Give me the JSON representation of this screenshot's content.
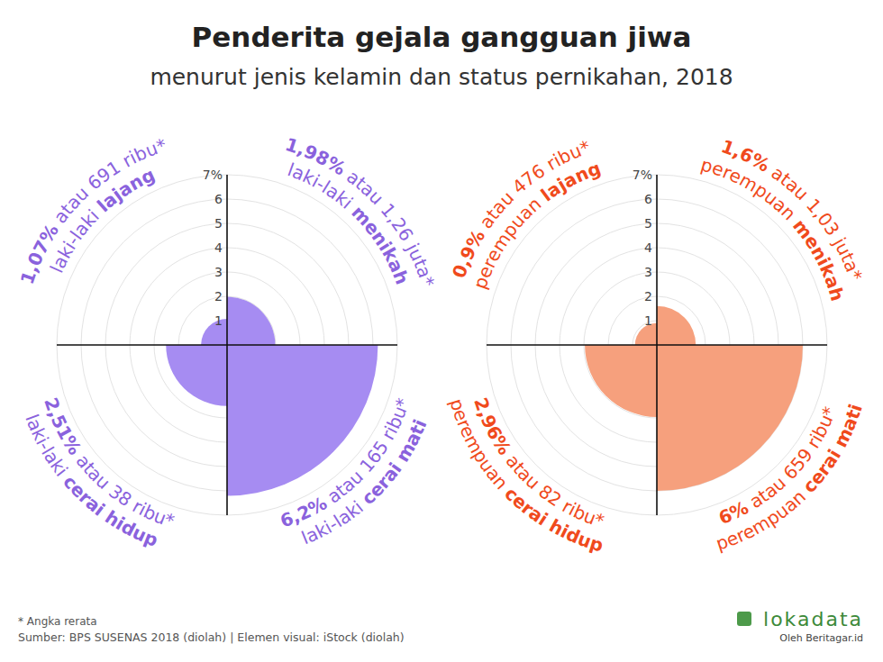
{
  "title": "Penderita gejala gangguan jiwa",
  "subtitle": "menurut jenis kelamin dan status pernikahan, 2018",
  "chart_data": [
    {
      "type": "polar_area",
      "group_label": "laki-laki",
      "categories": [
        "lajang",
        "menikah",
        "cerai hidup",
        "cerai mati"
      ],
      "values": [
        1.07,
        1.98,
        2.51,
        6.2
      ],
      "value_labels": [
        "1,07%",
        "1,98%",
        "2,51%",
        "6,2%"
      ],
      "connector": "atau",
      "count_labels": [
        "691 ribu*",
        "1,26 juta*",
        "38 ribu*",
        "165 ribu*"
      ],
      "color": "#a68cf2",
      "ylim": [
        0,
        7
      ],
      "yticks": [
        1,
        2,
        3,
        4,
        5,
        6,
        {
          "value": 7,
          "label": "7%"
        }
      ],
      "grid": true,
      "data_labels": true
    },
    {
      "type": "polar_area",
      "group_label": "perempuan",
      "categories": [
        "lajang",
        "menikah",
        "cerai hidup",
        "cerai mati"
      ],
      "values": [
        0.9,
        1.6,
        2.96,
        6
      ],
      "value_labels": [
        "0,9%",
        "1,6%",
        "2,96%",
        "6%"
      ],
      "connector": "atau",
      "count_labels": [
        "476 ribu*",
        "1,03 juta*",
        "82 ribu*",
        "659 ribu*"
      ],
      "color": "#f6a07d",
      "ylim": [
        0,
        7
      ],
      "yticks": [
        1,
        2,
        3,
        4,
        5,
        6,
        {
          "value": 7,
          "label": "7%"
        }
      ],
      "grid": true,
      "data_labels": true
    }
  ],
  "footnote": "* Angka rerata",
  "source": "Sumber: BPS SUSENAS 2018 (diolah) | Elemen visual: iStock (diolah)",
  "brand": "lokadata",
  "brand_sub": "Oleh Beritagar.id"
}
